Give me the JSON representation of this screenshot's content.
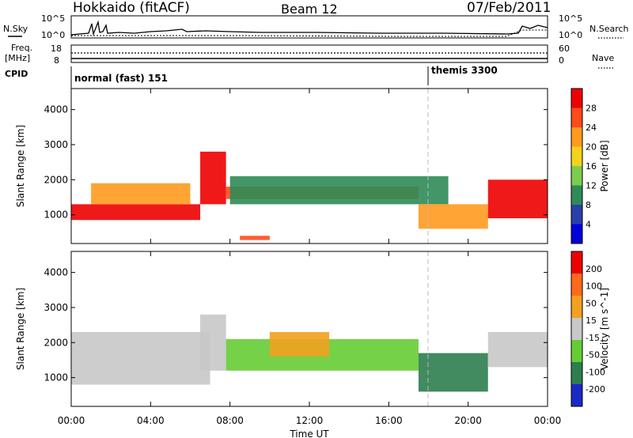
{
  "header": {
    "radar": "Hokkaido (fitACF)",
    "beam": "Beam 12",
    "date": "07/Feb/2011"
  },
  "top_panels": {
    "nsky_label": "N.Sky",
    "nsearch_label": "N.Search",
    "nsky_ticks": [
      "10^5",
      "10^0"
    ],
    "nsearch_ticks": [
      "10^5",
      "10^0"
    ],
    "freq_label_1": "Freq.",
    "freq_label_2": "[MHz]",
    "freq_ticks": [
      "18",
      "8"
    ],
    "nave_label": "Nave",
    "nave_ticks": [
      "60",
      "0"
    ],
    "cpid_label": "CPID",
    "cpid_segments": [
      {
        "label": "normal (fast) 151",
        "start_h": 0
      },
      {
        "label": "themis 3300",
        "start_h": 18
      }
    ]
  },
  "colors": {
    "power": [
      "#0000dd",
      "#2a3fa8",
      "#2e8b57",
      "#7ccd4e",
      "#f2d21b",
      "#ff9a1f",
      "#ff4a1a",
      "#ee0000"
    ],
    "velocity": [
      "#1a28c8",
      "#2e7d4f",
      "#66cc33",
      "#c8c8c8",
      "#f2a11f",
      "#ff6a1a",
      "#ee0000"
    ]
  },
  "chart_data": [
    {
      "type": "heatmap",
      "quantity": "Power",
      "ylabel": "Slant Range [km]",
      "xlabel": "Time UT",
      "xlim_h": [
        0,
        24
      ],
      "ylim_km": [
        180,
        4600
      ],
      "x_ticks": [
        "00:00",
        "04:00",
        "08:00",
        "12:00",
        "16:00",
        "20:00",
        "00:00"
      ],
      "y_ticks": [
        1000,
        2000,
        3000,
        4000
      ],
      "colorbar": {
        "label": "Power [dB]",
        "ticks": [
          "28",
          "24",
          "20",
          "16",
          "12",
          "8",
          "4"
        ]
      },
      "regions": [
        {
          "t0": 0.0,
          "t1": 6.5,
          "r0": 850,
          "r1": 1300,
          "level": 7
        },
        {
          "t0": 1.0,
          "t1": 6.0,
          "r0": 1300,
          "r1": 1900,
          "level": 5
        },
        {
          "t0": 6.5,
          "t1": 7.8,
          "r0": 1300,
          "r1": 2800,
          "level": 7
        },
        {
          "t0": 7.8,
          "t1": 17.5,
          "r0": 1450,
          "r1": 1800,
          "level": 6
        },
        {
          "t0": 8.0,
          "t1": 19.0,
          "r0": 1300,
          "r1": 2100,
          "level": 2
        },
        {
          "t0": 17.5,
          "t1": 21.0,
          "r0": 600,
          "r1": 1300,
          "level": 5
        },
        {
          "t0": 21.0,
          "t1": 24.0,
          "r0": 900,
          "r1": 2000,
          "level": 7
        },
        {
          "t0": 8.5,
          "t1": 10.0,
          "r0": 280,
          "r1": 400,
          "level": 6
        }
      ]
    },
    {
      "type": "heatmap",
      "quantity": "Velocity",
      "ylabel": "Slant Range [km]",
      "xlabel": "Time UT",
      "xlim_h": [
        0,
        24
      ],
      "ylim_km": [
        180,
        4600
      ],
      "x_ticks": [
        "00:00",
        "04:00",
        "08:00",
        "12:00",
        "16:00",
        "20:00",
        "00:00"
      ],
      "y_ticks": [
        1000,
        2000,
        3000,
        4000
      ],
      "colorbar": {
        "label": "Velocity [m s^-1]",
        "ticks": [
          "200",
          "100",
          "50",
          "15",
          "-15",
          "-50",
          "-100",
          "-200"
        ]
      },
      "regions": [
        {
          "t0": 0.0,
          "t1": 7.0,
          "r0": 800,
          "r1": 2300,
          "level": 3
        },
        {
          "t0": 6.5,
          "t1": 7.8,
          "r0": 1200,
          "r1": 2800,
          "level": 3
        },
        {
          "t0": 7.8,
          "t1": 17.5,
          "r0": 1200,
          "r1": 2100,
          "level": 2
        },
        {
          "t0": 10.0,
          "t1": 13.0,
          "r0": 1600,
          "r1": 2300,
          "level": 4
        },
        {
          "t0": 17.5,
          "t1": 21.0,
          "r0": 600,
          "r1": 1700,
          "level": 1
        },
        {
          "t0": 21.0,
          "t1": 24.0,
          "r0": 1300,
          "r1": 2300,
          "level": 3
        }
      ]
    }
  ]
}
